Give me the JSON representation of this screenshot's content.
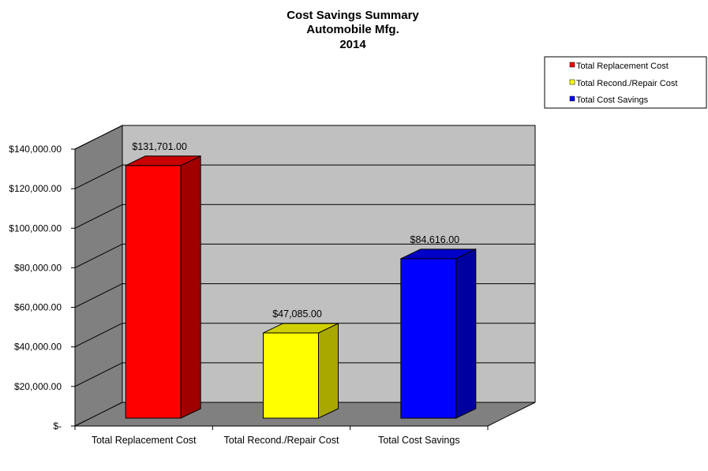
{
  "chart_data": {
    "type": "bar",
    "title": [
      "Cost Savings Summary",
      "Automobile Mfg.",
      "2014"
    ],
    "categories": [
      "Total Replacement Cost",
      "Total Recond./Repair Cost",
      "Total Cost Savings"
    ],
    "values": [
      131701,
      47085,
      84616
    ],
    "data_labels": [
      "$131,701.00",
      "$47,085.00",
      "$84,616.00"
    ],
    "colors": [
      "#ff0000",
      "#ffff00",
      "#0000ff"
    ],
    "side_colors": [
      "#a00000",
      "#a8a800",
      "#0000a0"
    ],
    "top_colors": [
      "#c80000",
      "#d0d000",
      "#0000c8"
    ],
    "ylim": [
      0,
      140000
    ],
    "yticks": [
      0,
      20000,
      40000,
      60000,
      80000,
      100000,
      120000,
      140000
    ],
    "ytick_labels": [
      "$-",
      "$20,000.00",
      "$40,000.00",
      "$60,000.00",
      "$80,000.00",
      "$100,000.00",
      "$120,000.00",
      "$140,000.00"
    ],
    "grid": true,
    "legend_position": "top-right",
    "legend": [
      "Total Replacement Cost",
      "Total Recond./Repair Cost",
      "Total Cost Savings"
    ],
    "wall_color": "#c0c0c0",
    "side_wall_color": "#808080",
    "floor_color": "#808080"
  }
}
